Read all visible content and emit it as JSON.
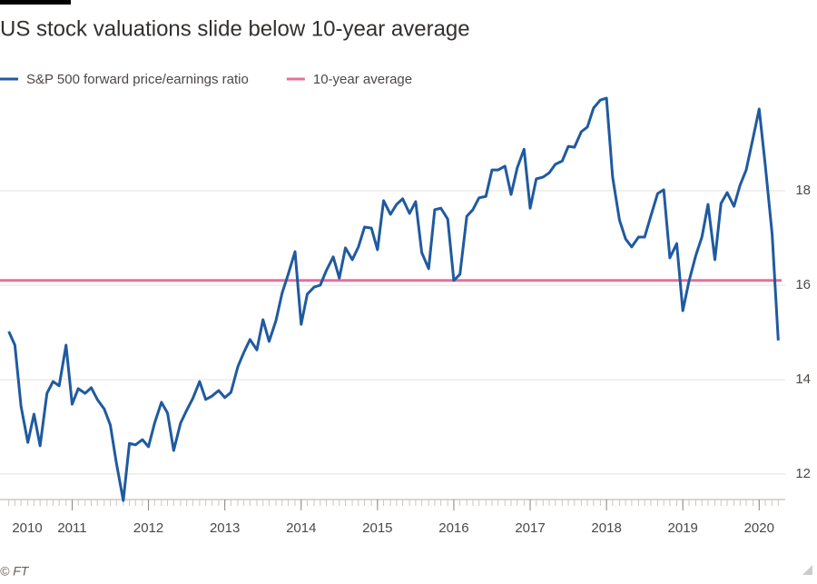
{
  "chart_data": {
    "type": "line",
    "title": "US stock valuations slide below 10-year average",
    "source": "© FT",
    "x": [
      2010.17,
      2010.25,
      2010.33,
      2010.42,
      2010.5,
      2010.58,
      2010.67,
      2010.75,
      2010.83,
      2010.92,
      2011.0,
      2011.08,
      2011.17,
      2011.25,
      2011.33,
      2011.42,
      2011.5,
      2011.58,
      2011.67,
      2011.75,
      2011.83,
      2011.92,
      2012.0,
      2012.08,
      2012.17,
      2012.25,
      2012.33,
      2012.42,
      2012.5,
      2012.58,
      2012.67,
      2012.75,
      2012.83,
      2012.92,
      2013.0,
      2013.08,
      2013.17,
      2013.25,
      2013.33,
      2013.42,
      2013.5,
      2013.58,
      2013.67,
      2013.75,
      2013.83,
      2013.92,
      2014.0,
      2014.08,
      2014.17,
      2014.25,
      2014.33,
      2014.42,
      2014.5,
      2014.58,
      2014.67,
      2014.75,
      2014.83,
      2014.92,
      2015.0,
      2015.08,
      2015.17,
      2015.25,
      2015.33,
      2015.42,
      2015.5,
      2015.58,
      2015.67,
      2015.75,
      2015.83,
      2015.92,
      2016.0,
      2016.08,
      2016.17,
      2016.25,
      2016.33,
      2016.42,
      2016.5,
      2016.58,
      2016.67,
      2016.75,
      2016.83,
      2016.92,
      2017.0,
      2017.08,
      2017.17,
      2017.25,
      2017.33,
      2017.42,
      2017.5,
      2017.58,
      2017.67,
      2017.75,
      2017.83,
      2017.92,
      2018.0,
      2018.08,
      2018.17,
      2018.25,
      2018.33,
      2018.42,
      2018.5,
      2018.58,
      2018.67,
      2018.75,
      2018.83,
      2018.92,
      2019.0,
      2019.08,
      2019.17,
      2019.25,
      2019.33,
      2019.42,
      2019.5,
      2019.58,
      2019.67,
      2019.75,
      2019.83,
      2019.92,
      2020.0,
      2020.08,
      2020.17,
      2020.25
    ],
    "series": [
      {
        "name": "S&P 500 forward price/earnings ratio",
        "color": "#1f5aa0",
        "values": [
          15.02,
          14.73,
          13.44,
          12.67,
          13.27,
          12.6,
          13.71,
          13.96,
          13.87,
          14.73,
          13.48,
          13.81,
          13.71,
          13.83,
          13.58,
          13.38,
          13.04,
          12.23,
          11.44,
          12.65,
          12.62,
          12.73,
          12.58,
          13.08,
          13.52,
          13.29,
          12.5,
          13.08,
          13.35,
          13.6,
          13.96,
          13.58,
          13.65,
          13.77,
          13.62,
          13.73,
          14.27,
          14.58,
          14.85,
          14.63,
          15.27,
          14.81,
          15.25,
          15.83,
          16.23,
          16.71,
          15.17,
          15.81,
          15.96,
          16.0,
          16.31,
          16.6,
          16.15,
          16.79,
          16.54,
          16.81,
          17.23,
          17.21,
          16.75,
          17.79,
          17.5,
          17.71,
          17.83,
          17.52,
          17.77,
          16.69,
          16.35,
          17.6,
          17.63,
          17.4,
          16.1,
          16.23,
          17.46,
          17.6,
          17.85,
          17.88,
          18.44,
          18.44,
          18.52,
          17.92,
          18.48,
          18.88,
          17.63,
          18.25,
          18.29,
          18.38,
          18.56,
          18.63,
          18.94,
          18.92,
          19.25,
          19.35,
          19.75,
          19.92,
          19.96,
          18.29,
          17.38,
          16.98,
          16.81,
          17.02,
          17.02,
          17.46,
          17.94,
          18.02,
          16.58,
          16.88,
          15.46,
          16.08,
          16.63,
          17.02,
          17.71,
          16.54,
          17.73,
          17.96,
          17.67,
          18.12,
          18.44,
          19.12,
          19.73,
          18.54,
          17.08,
          14.83
        ]
      }
    ],
    "reference_lines": [
      {
        "name": "10-year average",
        "value": 16.1,
        "color": "#e5709a"
      }
    ],
    "xlim": [
      2010.15,
      2020.27
    ],
    "xticks": [
      2010,
      2011,
      2012,
      2013,
      2014,
      2015,
      2016,
      2017,
      2018,
      2019,
      2020
    ],
    "ylim": [
      11.4,
      20.2
    ],
    "yticks": [
      12,
      14,
      16,
      18
    ],
    "grid": true,
    "y_axis_side": "right"
  }
}
